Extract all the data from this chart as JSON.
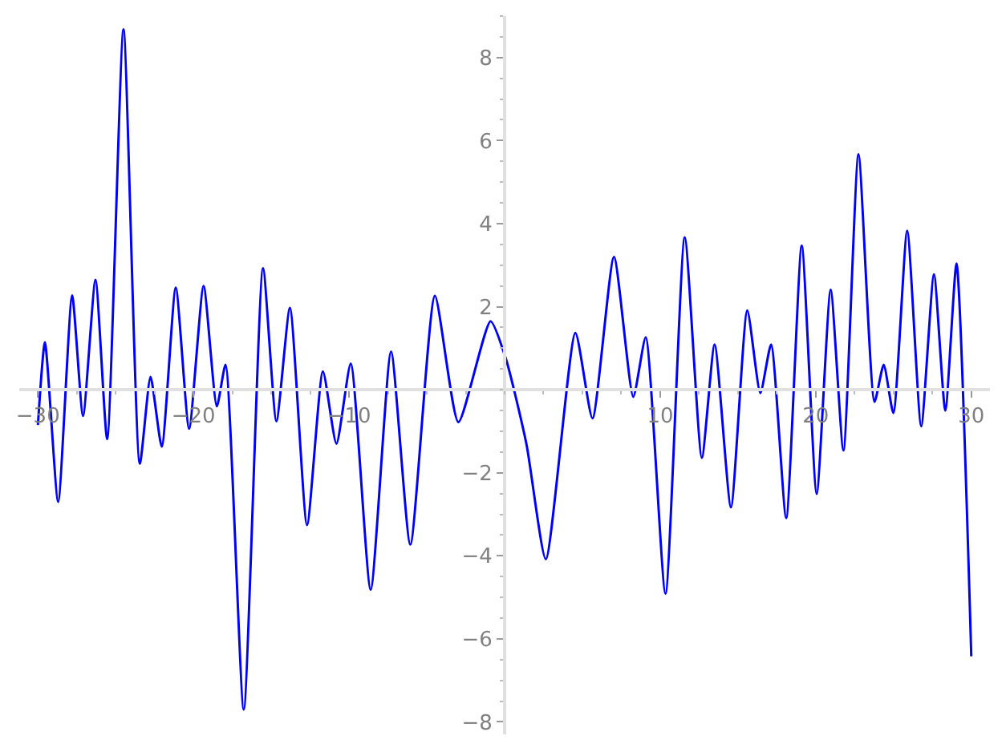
{
  "chart_data": {
    "type": "line",
    "x": [
      -30,
      -29.55,
      -28.7,
      -27.8,
      -27.1,
      -26.3,
      -25.55,
      -24.5,
      -23.45,
      -22.76,
      -22.04,
      -21.14,
      -20.28,
      -19.35,
      -18.5,
      -17.94,
      -16.77,
      -15.53,
      -14.67,
      -13.8,
      -12.7,
      -11.68,
      -10.81,
      -9.89,
      -8.61,
      -7.3,
      -6.06,
      -4.48,
      -2.97,
      -0.9,
      0.07,
      1.4,
      2.65,
      4.55,
      5.65,
      7.03,
      8.27,
      9.07,
      10.34,
      11.58,
      12.68,
      13.5,
      14.55,
      15.6,
      16.44,
      17.13,
      18.1,
      19.1,
      20.06,
      20.96,
      21.78,
      22.75,
      23.78,
      24.37,
      24.99,
      25.88,
      26.78,
      27.6,
      28.33,
      29.05,
      30
    ],
    "series": [
      {
        "color": "#0000ff",
        "values": [
          -0.85,
          1.14,
          -2.7,
          2.27,
          -0.63,
          2.65,
          -1.19,
          8.68,
          -1.78,
          0.31,
          -1.37,
          2.46,
          -0.94,
          2.5,
          -0.4,
          0.6,
          -7.7,
          2.93,
          -0.76,
          1.97,
          -3.26,
          0.44,
          -1.3,
          0.63,
          -4.82,
          0.92,
          -3.73,
          2.26,
          -0.78,
          1.65,
          0.76,
          -1.3,
          -4.08,
          1.37,
          -0.69,
          3.2,
          -0.17,
          1.26,
          -4.91,
          3.67,
          -1.64,
          1.09,
          -2.83,
          1.91,
          -0.08,
          1.09,
          -3.09,
          3.47,
          -2.51,
          2.41,
          -1.46,
          5.67,
          -0.29,
          0.6,
          -0.56,
          3.83,
          -0.88,
          2.78,
          -0.5,
          3.04,
          -6.42
        ]
      }
    ],
    "xlim": [
      -31.2,
      31.2
    ],
    "ylim": [
      -8.3,
      9
    ],
    "xticks": [
      -30,
      -20,
      -10,
      10,
      20,
      30
    ],
    "yticks": [
      -8,
      -6,
      -4,
      -2,
      2,
      4,
      6,
      8
    ],
    "marker": "none",
    "line_style": "solid"
  }
}
